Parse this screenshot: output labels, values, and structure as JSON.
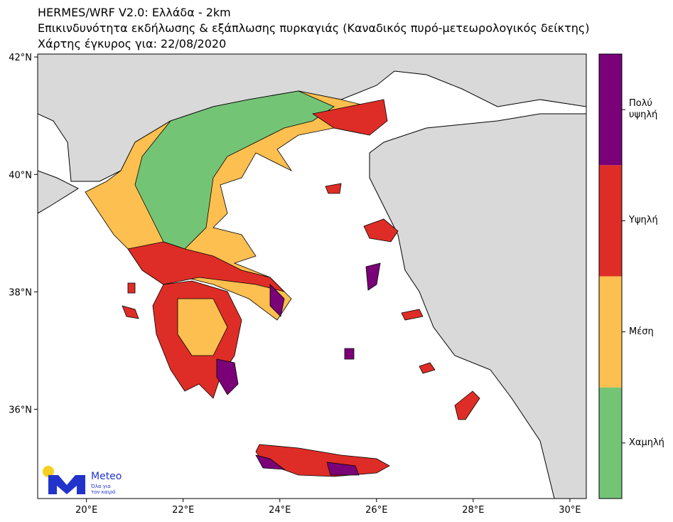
{
  "title_lines": [
    "HERMES/WRF V2.0: Ελλάδα - 2km",
    "Επικινδυνότητα εκδήλωσης & εξάπλωσης πυρκαγιάς (Καναδικός πυρό-μετεωρολογικός δείκτης)",
    "Χάρτης έγκυρος για: 22/08/2020"
  ],
  "map": {
    "xlim": [
      18.99,
      30.34
    ],
    "ylim": [
      34.48,
      42.05
    ],
    "xticks": [
      {
        "value": 20,
        "label": "20°E"
      },
      {
        "value": 22,
        "label": "22°E"
      },
      {
        "value": 24,
        "label": "24°E"
      },
      {
        "value": 26,
        "label": "26°E"
      },
      {
        "value": 28,
        "label": "28°E"
      },
      {
        "value": 30,
        "label": "30°E"
      }
    ],
    "yticks": [
      {
        "value": 36,
        "label": "36°N"
      },
      {
        "value": 38,
        "label": "38°N"
      },
      {
        "value": 40,
        "label": "40°N"
      },
      {
        "value": 42,
        "label": "42°N"
      }
    ]
  },
  "legend": {
    "categories": [
      {
        "label": "Χαμηλή",
        "color": "#74c476"
      },
      {
        "label": "Μέση",
        "color": "#fdbf4f"
      },
      {
        "label": "Υψηλή",
        "color": "#de2d26"
      },
      {
        "label": "Πολύ υψηλή",
        "color": "#7a0177"
      }
    ]
  },
  "logo": {
    "name": "Meteo",
    "tagline": [
      "Όλα για",
      "τον καιρό"
    ]
  }
}
